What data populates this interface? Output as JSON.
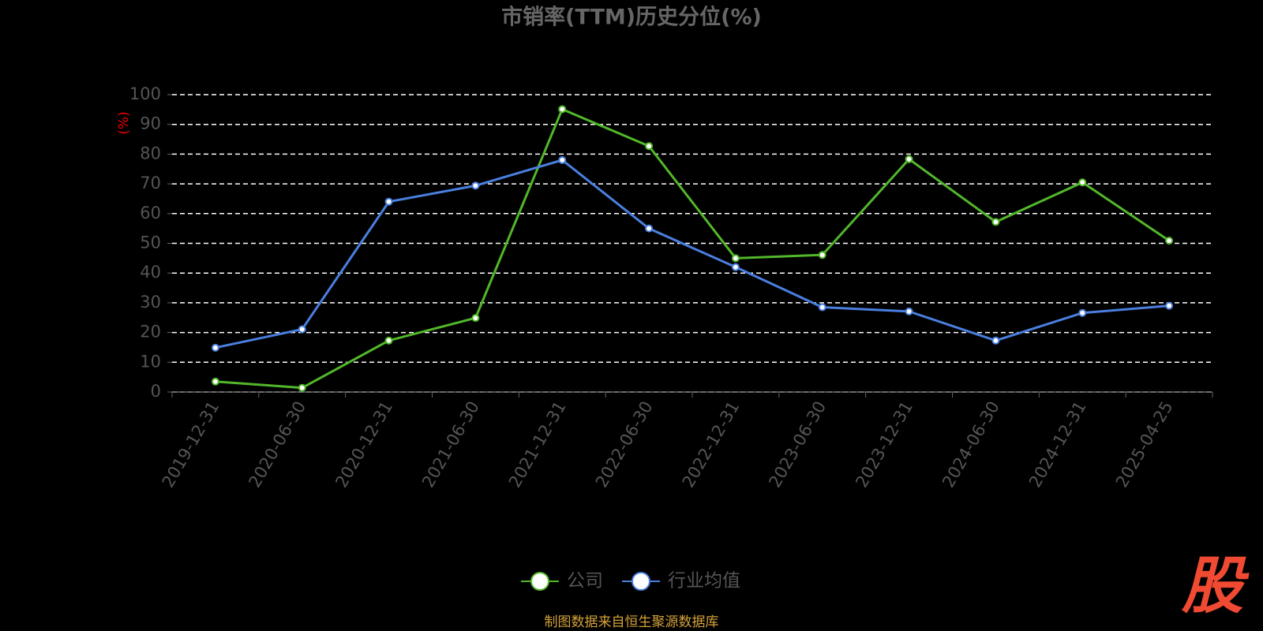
{
  "chart_data": {
    "type": "line",
    "title": "市销率(TTM)历史分位(%)",
    "y_label": "(%)",
    "categories": [
      "2019-12-31",
      "2020-06-30",
      "2020-12-31",
      "2021-06-30",
      "2021-12-31",
      "2022-06-30",
      "2022-12-31",
      "2023-06-30",
      "2023-12-31",
      "2024-06-30",
      "2024-12-31",
      "2025-04-25"
    ],
    "series": [
      {
        "name": "公司",
        "color": "#52b72a",
        "values": [
          3.5,
          1.4,
          17.3,
          24.9,
          95.1,
          82.7,
          45.0,
          46.1,
          78.3,
          57.2,
          70.5,
          50.9
        ]
      },
      {
        "name": "行业均值",
        "color": "#4a7fe0",
        "values": [
          14.9,
          21.1,
          64.0,
          69.4,
          78.0,
          55.0,
          42.0,
          28.5,
          27.1,
          17.3,
          26.6,
          29.0
        ]
      }
    ],
    "ylim": [
      0,
      100
    ],
    "yticks": [
      0,
      10,
      20,
      30,
      40,
      50,
      60,
      70,
      80,
      90,
      100
    ],
    "grid": true,
    "source": "制图数据来自恒生聚源数据库",
    "logo": "股"
  }
}
